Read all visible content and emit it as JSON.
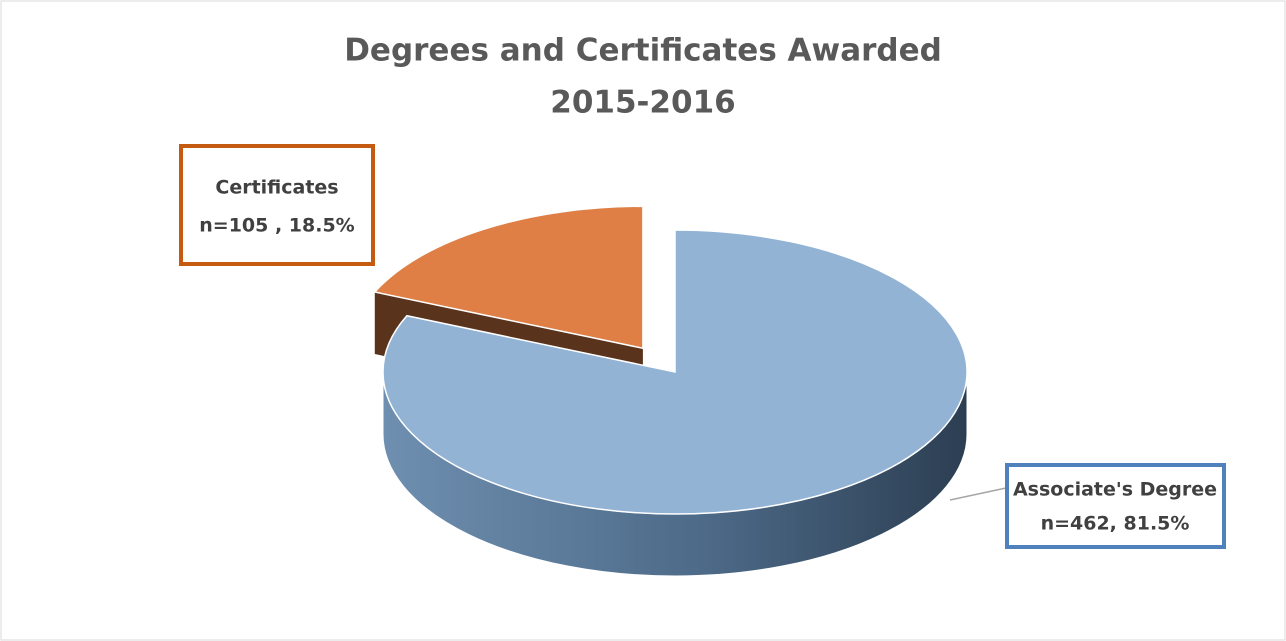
{
  "chart_data": {
    "type": "pie",
    "title": [
      "Degrees and Certificates Awarded",
      "2015-2016"
    ],
    "categories": [
      "Associate's Degree",
      "Certificates"
    ],
    "values": [
      462,
      105
    ],
    "value_labels": [
      "n=462, 81.5%",
      "n=105 , 18.5%"
    ],
    "colors": [
      "#93b3d5",
      "#df7f45"
    ],
    "exploded": [
      false,
      true
    ]
  }
}
